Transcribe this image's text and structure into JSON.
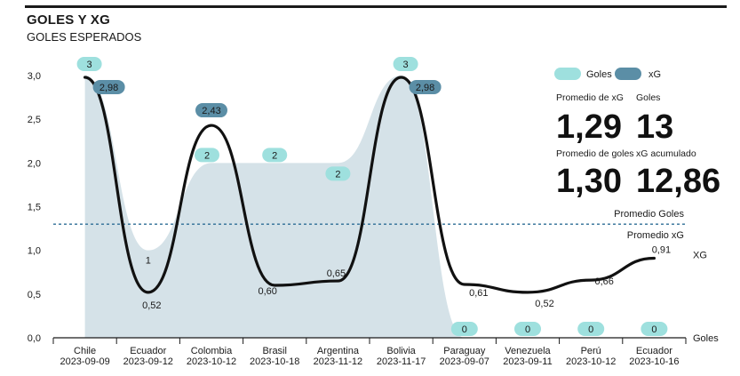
{
  "header": {
    "title": "GOLES Y XG",
    "subtitle": "GOLES ESPERADOS"
  },
  "chart_data": {
    "type": "line",
    "categories": [
      {
        "team": "Chile",
        "date": "2023-09-09"
      },
      {
        "team": "Ecuador",
        "date": "2023-09-12"
      },
      {
        "team": "Colombia",
        "date": "2023-10-12"
      },
      {
        "team": "Brasil",
        "date": "2023-10-18"
      },
      {
        "team": "Argentina",
        "date": "2023-11-12"
      },
      {
        "team": "Bolivia",
        "date": "2023-11-17"
      },
      {
        "team": "Paraguay",
        "date": "2023-09-07"
      },
      {
        "team": "Venezuela",
        "date": "2023-09-11"
      },
      {
        "team": "Perú",
        "date": "2023-10-12"
      },
      {
        "team": "Ecuador",
        "date": "2023-10-16"
      }
    ],
    "series": [
      {
        "name": "Goles",
        "type": "area",
        "values": [
          3,
          1,
          2,
          2,
          2,
          3,
          0,
          0,
          0,
          0
        ],
        "labels": [
          "3",
          "1",
          "2",
          "2",
          "2",
          "3",
          "0",
          "0",
          "0",
          "0"
        ]
      },
      {
        "name": "xG",
        "type": "line",
        "values": [
          2.98,
          0.52,
          2.43,
          0.6,
          0.65,
          2.98,
          0.61,
          0.52,
          0.66,
          0.91
        ],
        "labels": [
          "2,98",
          "0,52",
          "2,43",
          "0,60",
          "0,65",
          "2,98",
          "0,61",
          "0,52",
          "0,66",
          "0,91"
        ]
      }
    ],
    "ylim": [
      0,
      3
    ],
    "yticks": [
      "0,0",
      "0,5",
      "1,0",
      "1,5",
      "2,0",
      "2,5",
      "3,0"
    ],
    "reference_lines": [
      {
        "label": "Promedio Goles",
        "value": 1.3
      },
      {
        "label": "Promedio xG",
        "value": 1.29
      }
    ],
    "end_labels": {
      "line": "XG",
      "area": "Goles"
    },
    "legend": {
      "position": "top-right",
      "items": [
        "Goles",
        "xG"
      ]
    },
    "colors": {
      "goles_area": "#d5e2e8",
      "goles_pill": "#9ee0de",
      "xg_pill": "#5b8ea6",
      "line": "#111111",
      "ref_line": "#2e6e96"
    }
  },
  "stats": {
    "avg_xg_label": "Promedio de xG",
    "avg_xg": "1,29",
    "goals_label": "Goles",
    "goals": "13",
    "avg_goals_label": "Promedio de goles",
    "avg_goals": "1,30",
    "xg_total_label": "xG acumulado",
    "xg_total": "12,86"
  }
}
